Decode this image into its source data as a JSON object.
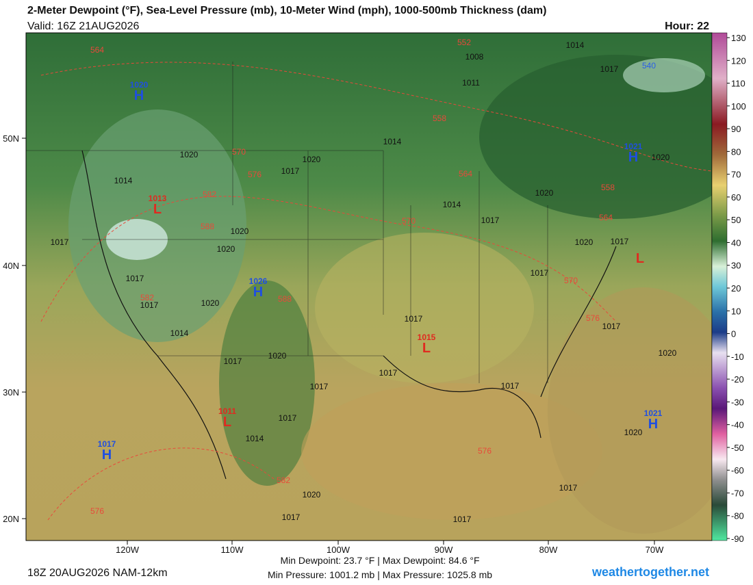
{
  "header": {
    "title": "2-Meter Dewpoint (°F), Sea-Level Pressure (mb), 10-Meter Wind (mph), 1000-500mb Thickness (dam)",
    "valid": "Valid: 16Z 21AUG2026",
    "hour": "Hour: 22"
  },
  "map": {
    "lat_labels": [
      "50N",
      "40N",
      "30N",
      "20N"
    ],
    "lon_labels": [
      "120W",
      "110W",
      "100W",
      "90W",
      "80W",
      "70W"
    ],
    "highs": [
      {
        "letter": "H",
        "value": "1020"
      },
      {
        "letter": "H",
        "value": "1026"
      },
      {
        "letter": "H",
        "value": "1021"
      },
      {
        "letter": "H",
        "value": "1021"
      },
      {
        "letter": "H",
        "value": "1017"
      }
    ],
    "lows": [
      {
        "letter": "L",
        "value": "1013"
      },
      {
        "letter": "L",
        "value": "1015"
      },
      {
        "letter": "L",
        "value": "1011"
      },
      {
        "letter": "L"
      }
    ],
    "isobar_labels": [
      "1014",
      "1008",
      "1017",
      "1011",
      "1014",
      "1020",
      "1017",
      "1020",
      "1014",
      "1014",
      "1017",
      "1020",
      "1020",
      "1020",
      "1017",
      "1017",
      "1017",
      "1020",
      "1014",
      "1020",
      "1017",
      "1017",
      "1017",
      "1017",
      "1017",
      "1017",
      "1014",
      "1020",
      "1017",
      "1017",
      "1017",
      "1020",
      "1017",
      "1017",
      "1017",
      "1020",
      "1020",
      "1020"
    ],
    "thickness_labels": [
      "564",
      "552",
      "558",
      "570",
      "576",
      "582",
      "588",
      "564",
      "570",
      "558",
      "564",
      "582",
      "588",
      "570",
      "576",
      "576",
      "582",
      "576"
    ],
    "thickness_color": "#e8493a",
    "cold_thickness_labels": [
      "540"
    ],
    "cold_thickness_color": "#2a5ee8",
    "high_color": "#1f4fe0",
    "low_color": "#e02a20"
  },
  "colorbar": {
    "ticks": [
      130,
      120,
      110,
      100,
      90,
      80,
      70,
      60,
      50,
      40,
      30,
      20,
      10,
      0,
      -10,
      -20,
      -30,
      -40,
      -50,
      -60,
      -70,
      -80,
      -90
    ]
  },
  "footer": {
    "run": "18Z 20AUG2026 NAM-12km",
    "dewpoint": "Min Dewpoint:  23.7 °F | Max Dewpoint:  84.6 °F",
    "pressure": "Min Pressure: 1001.2 mb | Max Pressure: 1025.8 mb",
    "site": "weathertogether.net"
  }
}
